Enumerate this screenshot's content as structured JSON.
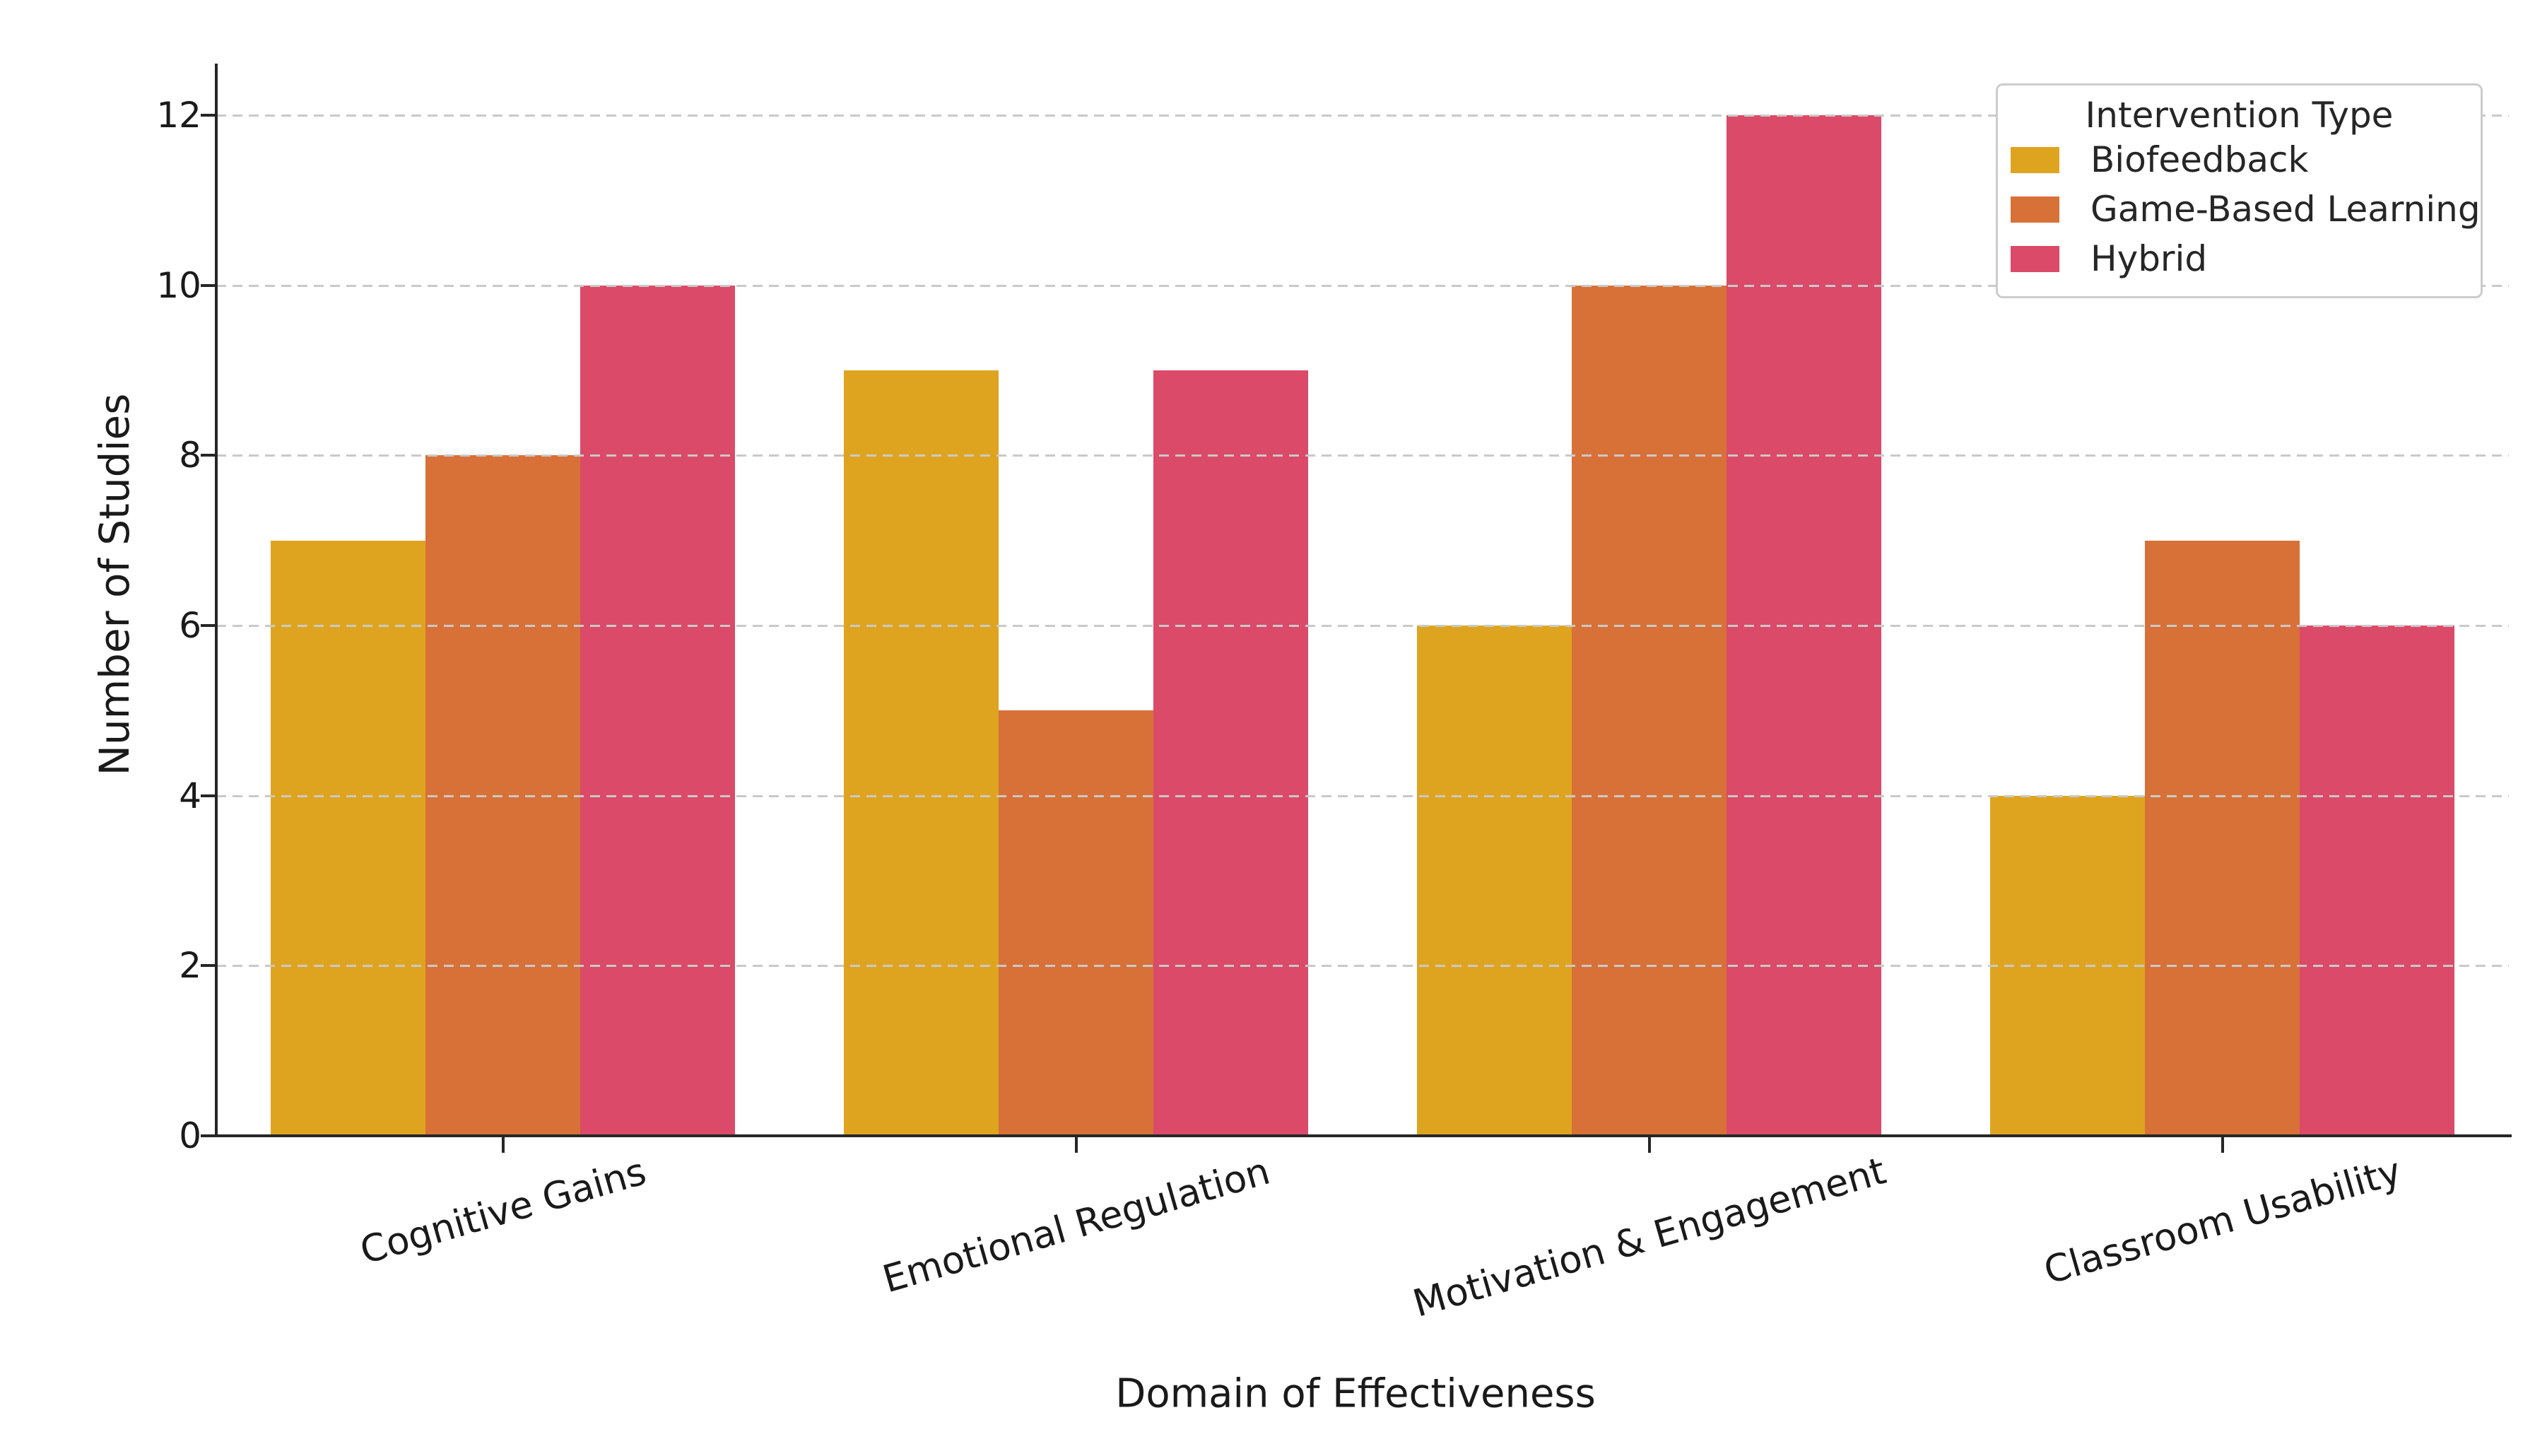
{
  "chart_data": {
    "type": "bar",
    "title": "",
    "xlabel": "Domain of Effectiveness",
    "ylabel": "Number of Studies",
    "categories": [
      "Cognitive Gains",
      "Emotional Regulation",
      "Motivation & Engagement",
      "Classroom Usability"
    ],
    "series": [
      {
        "name": "Biofeedback",
        "color": "#DFA41F",
        "values": [
          7,
          9,
          6,
          4
        ]
      },
      {
        "name": "Game-Based Learning",
        "color": "#D87138",
        "values": [
          8,
          5,
          10,
          7
        ]
      },
      {
        "name": "Hybrid",
        "color": "#DB4A68",
        "values": [
          10,
          9,
          12,
          6
        ]
      }
    ],
    "ylim": [
      0,
      12
    ],
    "yticks": [
      0,
      2,
      4,
      6,
      8,
      10,
      12
    ],
    "grid": {
      "axis": "y",
      "style": "dashed",
      "color": "#c9c9c9",
      "drawn_over_bars": true
    },
    "legend": {
      "title": "Intervention Type",
      "position": "upper-right"
    },
    "axis_color": "#262626",
    "tick_text_color": "#1a1a1a",
    "background": "#ffffff"
  }
}
